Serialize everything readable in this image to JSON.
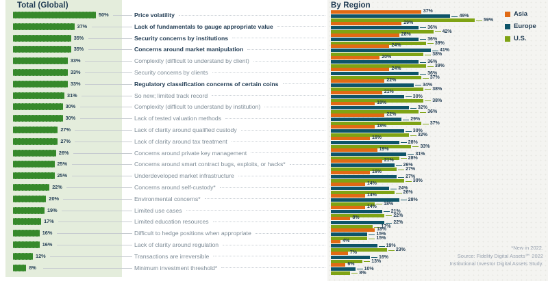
{
  "left_panel": {
    "title": "Total (Global)"
  },
  "right_panel": {
    "title": "By Region",
    "legend": [
      {
        "label": "Asia",
        "color": "#E06A14"
      },
      {
        "label": "Europe",
        "color": "#0E5468"
      },
      {
        "label": "U.S.",
        "color": "#7FA314"
      }
    ]
  },
  "footnote": {
    "lines": [
      "*New in 2022.",
      "Source: Fidelity Digital Assets℠ 2022",
      "Institutional Investor Digital Assets Study."
    ]
  },
  "colors": {
    "total_bar": "#36892B",
    "asia": "#E06A14",
    "europe": "#0E5468",
    "us": "#7FA314",
    "navy_text": "#1F3A52",
    "gray_text": "#7D8B96",
    "sage_background": "#E4EDDC",
    "region_background": "#F4F4F1"
  },
  "chart_data": {
    "type": "bar",
    "orientation": "horizontal",
    "unit": "%",
    "title_left": "Total (Global)",
    "title_right": "By Region",
    "xlim": [
      0,
      60
    ],
    "legend_position": "top-right",
    "grid": false,
    "value_labels": "at bar ends",
    "categories": [
      "Price volatility",
      "Lack of fundamentals to gauge appropriate value",
      "Security concerns by institutions",
      "Concerns around market manipulation",
      "Complexity (difficult to understand by client)",
      "Security concerns by clients",
      "Regulatory classification concerns of certain coins",
      "So new; limited track record",
      "Complexity (difficult to understand by institution)",
      "Lack of tested valuation methods",
      "Lack of clarity around qualified custody",
      "Lack of clarity around tax treatment",
      "Concerns around private key management",
      "Concerns around smart contract bugs, exploits, or hacks*",
      "Underdeveloped market infrastructure",
      "Concerns around self-custody*",
      "Environmental concerns*",
      "Limited use cases",
      "Limited education resources",
      "Difficult to hedge positions when appropriate",
      "Lack of clarity around regulation",
      "Transactions are irreversible",
      "Minimum investment threshold*"
    ],
    "bold_categories": [
      true,
      true,
      true,
      true,
      false,
      false,
      true,
      false,
      false,
      false,
      false,
      false,
      false,
      false,
      false,
      false,
      false,
      false,
      false,
      false,
      false,
      false,
      false
    ],
    "total": {
      "name": "Total (Global)",
      "color": "#36892B",
      "values": [
        50,
        37,
        35,
        35,
        33,
        33,
        33,
        31,
        30,
        30,
        27,
        27,
        26,
        25,
        25,
        22,
        20,
        19,
        17,
        16,
        16,
        12,
        8
      ]
    },
    "series": [
      {
        "name": "Asia",
        "color": "#E06A14",
        "values": [
          37,
          29,
          28,
          24,
          20,
          24,
          22,
          21,
          18,
          22,
          18,
          16,
          19,
          21,
          16,
          14,
          14,
          14,
          8,
          18,
          4,
          7,
          6
        ]
      },
      {
        "name": "Europe",
        "color": "#0E5468",
        "values": [
          49,
          36,
          36,
          41,
          36,
          36,
          34,
          30,
          32,
          29,
          30,
          28,
          31,
          26,
          27,
          24,
          28,
          21,
          22,
          15,
          19,
          16,
          10
        ]
      },
      {
        "name": "U.S.",
        "color": "#7FA314",
        "values": [
          59,
          42,
          39,
          38,
          39,
          37,
          38,
          38,
          36,
          37,
          32,
          33,
          28,
          27,
          30,
          26,
          18,
          22,
          17,
          15,
          23,
          13,
          8
        ]
      }
    ]
  }
}
